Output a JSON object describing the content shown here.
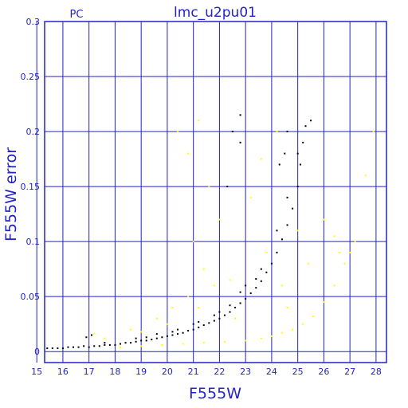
{
  "chart_data": {
    "type": "scatter",
    "title": "lmc_u2pu01",
    "corner_label": "PC",
    "xlabel": "F555W",
    "ylabel": "F555W error",
    "xlim": [
      15.3,
      28.4
    ],
    "ylim": [
      -0.01,
      0.3
    ],
    "xticks": [
      15,
      16,
      17,
      18,
      19,
      20,
      21,
      22,
      23,
      24,
      25,
      26,
      27,
      28
    ],
    "yticks": [
      0,
      0.05,
      0.1,
      0.15,
      0.2,
      0.25,
      0.3
    ],
    "ytick_labels": [
      "0",
      "0.05",
      "0.1",
      "0.15",
      "0.2",
      "0.25",
      "0.3"
    ],
    "grid": true,
    "colors": {
      "axis": "#2323c8",
      "series_black": "#000000",
      "series_yellow": "#ffff00"
    },
    "series": [
      {
        "color": "black",
        "points": [
          [
            15.4,
            0.003
          ],
          [
            15.6,
            0.003
          ],
          [
            15.8,
            0.003
          ],
          [
            16.0,
            0.003
          ],
          [
            16.2,
            0.004
          ],
          [
            16.4,
            0.004
          ],
          [
            16.6,
            0.004
          ],
          [
            16.8,
            0.005
          ],
          [
            17.0,
            0.004
          ],
          [
            17.2,
            0.005
          ],
          [
            17.4,
            0.005
          ],
          [
            17.6,
            0.006
          ],
          [
            17.8,
            0.006
          ],
          [
            18.0,
            0.006
          ],
          [
            18.2,
            0.007
          ],
          [
            18.4,
            0.008
          ],
          [
            18.6,
            0.008
          ],
          [
            18.8,
            0.009
          ],
          [
            19.0,
            0.01
          ],
          [
            19.2,
            0.01
          ],
          [
            19.4,
            0.011
          ],
          [
            19.6,
            0.012
          ],
          [
            19.8,
            0.013
          ],
          [
            20.0,
            0.014
          ],
          [
            20.2,
            0.015
          ],
          [
            20.4,
            0.016
          ],
          [
            20.6,
            0.017
          ],
          [
            20.8,
            0.019
          ],
          [
            21.0,
            0.02
          ],
          [
            21.2,
            0.022
          ],
          [
            21.4,
            0.024
          ],
          [
            21.6,
            0.026
          ],
          [
            21.8,
            0.028
          ],
          [
            22.0,
            0.03
          ],
          [
            22.2,
            0.033
          ],
          [
            22.4,
            0.036
          ],
          [
            22.6,
            0.04
          ],
          [
            22.8,
            0.044
          ],
          [
            23.0,
            0.048
          ],
          [
            23.2,
            0.053
          ],
          [
            23.4,
            0.058
          ],
          [
            23.6,
            0.064
          ],
          [
            23.8,
            0.072
          ],
          [
            24.0,
            0.08
          ],
          [
            24.2,
            0.09
          ],
          [
            24.4,
            0.102
          ],
          [
            24.6,
            0.115
          ],
          [
            24.8,
            0.13
          ],
          [
            25.0,
            0.15
          ],
          [
            25.1,
            0.17
          ],
          [
            25.2,
            0.19
          ],
          [
            25.3,
            0.205
          ],
          [
            25.5,
            0.21
          ],
          [
            24.6,
            0.2
          ],
          [
            24.5,
            0.18
          ],
          [
            24.3,
            0.17
          ],
          [
            22.8,
            0.215
          ],
          [
            22.8,
            0.19
          ],
          [
            22.3,
            0.15
          ],
          [
            22.5,
            0.2
          ],
          [
            16.9,
            0.013
          ],
          [
            17.1,
            0.015
          ],
          [
            17.6,
            0.008
          ],
          [
            18.8,
            0.012
          ],
          [
            19.6,
            0.016
          ],
          [
            20.4,
            0.02
          ],
          [
            21.2,
            0.027
          ],
          [
            22.0,
            0.036
          ],
          [
            22.8,
            0.054
          ],
          [
            23.6,
            0.075
          ],
          [
            24.2,
            0.11
          ],
          [
            24.6,
            0.14
          ],
          [
            25.0,
            0.18
          ],
          [
            23.4,
            0.066
          ],
          [
            23.0,
            0.06
          ],
          [
            22.4,
            0.042
          ],
          [
            21.8,
            0.033
          ],
          [
            21.0,
            0.025
          ],
          [
            20.2,
            0.018
          ],
          [
            19.2,
            0.013
          ]
        ]
      },
      {
        "color": "yellow",
        "points": [
          [
            18.2,
            0.004
          ],
          [
            19.0,
            0.005
          ],
          [
            19.8,
            0.006
          ],
          [
            20.6,
            0.007
          ],
          [
            21.4,
            0.008
          ],
          [
            22.2,
            0.009
          ],
          [
            23.0,
            0.01
          ],
          [
            23.6,
            0.012
          ],
          [
            24.0,
            0.014
          ],
          [
            24.4,
            0.017
          ],
          [
            24.8,
            0.02
          ],
          [
            25.2,
            0.025
          ],
          [
            25.6,
            0.032
          ],
          [
            26.0,
            0.045
          ],
          [
            26.4,
            0.06
          ],
          [
            26.8,
            0.08
          ],
          [
            27.2,
            0.1
          ],
          [
            27.6,
            0.16
          ],
          [
            27.9,
            0.2
          ],
          [
            20.4,
            0.2
          ],
          [
            20.8,
            0.18
          ],
          [
            21.6,
            0.15
          ],
          [
            22.0,
            0.12
          ],
          [
            21.0,
            0.1
          ],
          [
            21.4,
            0.075
          ],
          [
            22.4,
            0.065
          ],
          [
            23.8,
            0.09
          ],
          [
            24.4,
            0.06
          ],
          [
            25.4,
            0.08
          ],
          [
            26.6,
            0.09
          ],
          [
            26.0,
            0.12
          ],
          [
            20.2,
            0.04
          ],
          [
            20.8,
            0.05
          ],
          [
            21.8,
            0.06
          ],
          [
            19.6,
            0.03
          ],
          [
            18.6,
            0.02
          ],
          [
            17.6,
            0.012
          ],
          [
            17.2,
            0.016
          ],
          [
            23.2,
            0.14
          ],
          [
            25.0,
            0.11
          ],
          [
            26.4,
            0.105
          ],
          [
            27.0,
            0.09
          ],
          [
            24.6,
            0.04
          ],
          [
            22.6,
            0.03
          ],
          [
            21.2,
            0.04
          ],
          [
            20.0,
            0.025
          ],
          [
            19.0,
            0.018
          ],
          [
            24.2,
            0.2
          ],
          [
            21.2,
            0.21
          ],
          [
            23.6,
            0.175
          ]
        ]
      }
    ]
  }
}
